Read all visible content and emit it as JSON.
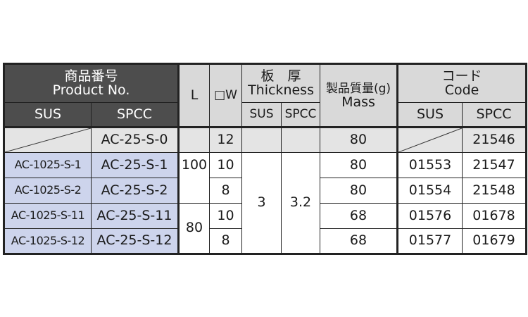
{
  "header": {
    "product_no_jp": "商品番号",
    "product_no_en": "Product No.",
    "sus": "SUS",
    "spcc": "SPCC",
    "L": "L",
    "W": "□W",
    "thickness_jp": "板　厚",
    "thickness_en": "Thickness",
    "mass_jp": "製品質量(g)",
    "mass_en": "Mass",
    "code_jp": "コード",
    "code_en": "Code"
  },
  "rows": [
    {
      "sus": "",
      "spcc": "AC-25-S-0",
      "L": "",
      "W": "12",
      "t_sus": "",
      "t_spcc": "",
      "mass": "80",
      "code_sus": "",
      "code_spcc": "21546"
    },
    {
      "sus": "AC-1025-S-1",
      "spcc": "AC-25-S-1",
      "L": "100",
      "W": "10",
      "t_sus": "3",
      "t_spcc": "3.2",
      "mass": "80",
      "code_sus": "01553",
      "code_spcc": "21547"
    },
    {
      "sus": "AC-1025-S-2",
      "spcc": "AC-25-S-2",
      "W": "8",
      "mass": "80",
      "code_sus": "01554",
      "code_spcc": "21548"
    },
    {
      "sus": "AC-1025-S-11",
      "spcc": "AC-25-S-11",
      "L": "80",
      "W": "10",
      "mass": "68",
      "code_sus": "01576",
      "code_spcc": "01678"
    },
    {
      "sus": "AC-1025-S-12",
      "spcc": "AC-25-S-12",
      "W": "8",
      "mass": "68",
      "code_sus": "01577",
      "code_spcc": "01679"
    }
  ]
}
